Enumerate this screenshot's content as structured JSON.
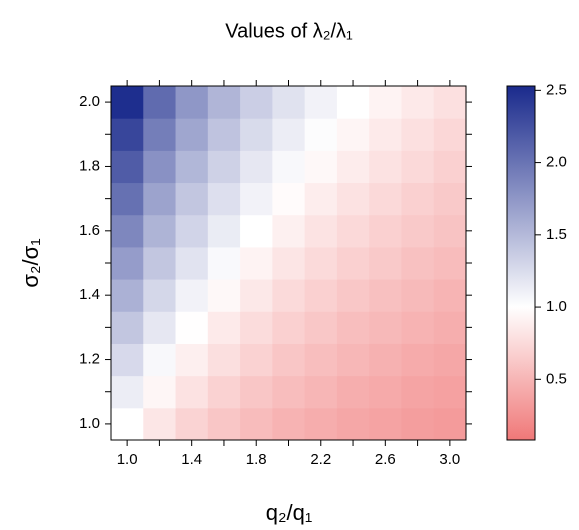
{
  "chart_data": {
    "type": "heatmap",
    "title": "Values of λ₂/λ₁",
    "x_label": "q₂/q₁",
    "y_label": "σ₂/σ₁",
    "x": [
      1.0,
      1.2,
      1.4,
      1.6,
      1.8,
      2.0,
      2.2,
      2.4,
      2.6,
      2.8,
      3.0
    ],
    "y": [
      1.0,
      1.1,
      1.2,
      1.3,
      1.4,
      1.5,
      1.6,
      1.7,
      1.8,
      1.9,
      2.0
    ],
    "z": [
      [
        1.0,
        0.83,
        0.7,
        0.61,
        0.54,
        0.48,
        0.44,
        0.4,
        0.37,
        0.34,
        0.32
      ],
      [
        1.13,
        0.94,
        0.8,
        0.69,
        0.61,
        0.55,
        0.5,
        0.45,
        0.42,
        0.38,
        0.36
      ],
      [
        1.27,
        1.05,
        0.89,
        0.78,
        0.69,
        0.61,
        0.56,
        0.51,
        0.47,
        0.43,
        0.4
      ],
      [
        1.41,
        1.17,
        0.99,
        0.86,
        0.76,
        0.68,
        0.62,
        0.56,
        0.52,
        0.48,
        0.45
      ],
      [
        1.56,
        1.29,
        1.09,
        0.95,
        0.84,
        0.75,
        0.68,
        0.62,
        0.57,
        0.53,
        0.49
      ],
      [
        1.71,
        1.41,
        1.2,
        1.04,
        0.92,
        0.82,
        0.75,
        0.68,
        0.63,
        0.58,
        0.54
      ],
      [
        1.86,
        1.54,
        1.31,
        1.14,
        1.0,
        0.9,
        0.81,
        0.74,
        0.68,
        0.63,
        0.59
      ],
      [
        2.02,
        1.66,
        1.41,
        1.23,
        1.09,
        0.97,
        0.88,
        0.8,
        0.74,
        0.68,
        0.63
      ],
      [
        2.17,
        1.79,
        1.52,
        1.33,
        1.17,
        1.05,
        0.95,
        0.87,
        0.8,
        0.74,
        0.68
      ],
      [
        2.33,
        1.93,
        1.64,
        1.43,
        1.26,
        1.13,
        1.02,
        0.93,
        0.86,
        0.79,
        0.73
      ],
      [
        2.5,
        2.06,
        1.75,
        1.53,
        1.35,
        1.21,
        1.09,
        1.0,
        0.92,
        0.85,
        0.79
      ]
    ],
    "xlim": [
      0.9,
      3.1
    ],
    "ylim": [
      0.95,
      2.05
    ],
    "xticks": [
      {
        "value": 1,
        "label": "1.0"
      },
      1.4,
      1.8,
      2.2,
      2.6,
      {
        "value": 3,
        "label": "3.0"
      }
    ],
    "xticks_minor": [
      1.2,
      1.6,
      2,
      2.4,
      2.8
    ],
    "yticks": [
      {
        "value": 1,
        "label": "1.0"
      },
      1.2,
      1.4,
      1.6,
      1.8,
      {
        "value": 2,
        "label": "2.0"
      }
    ],
    "yticks_minor": [
      1.1,
      1.3,
      1.5,
      1.7,
      1.9
    ],
    "zlim": [
      0.08,
      2.53
    ],
    "zticks": [
      0.5,
      {
        "value": 1,
        "label": "1.0"
      },
      1.5,
      {
        "value": 2,
        "label": "2.0"
      },
      2.5
    ],
    "colorscale": [
      [
        0.08,
        "#f07878"
      ],
      [
        1,
        "#ffffff"
      ],
      [
        2.53,
        "#1a2a8c"
      ]
    ]
  }
}
